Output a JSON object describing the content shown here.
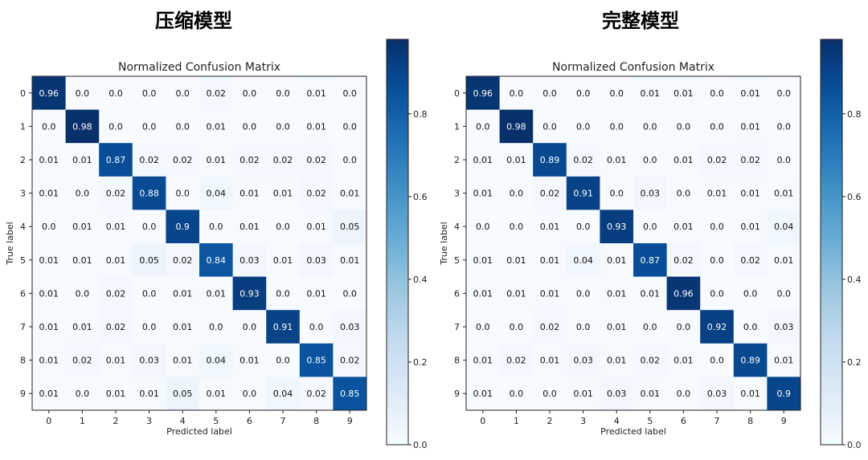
{
  "chart_data": [
    {
      "type": "heatmap",
      "panel_title": "压缩模型",
      "title": "Normalized Confusion Matrix",
      "xlabel": "Predicted label",
      "ylabel": "True label",
      "x_tick_labels": [
        "0",
        "1",
        "2",
        "3",
        "4",
        "5",
        "6",
        "7",
        "8",
        "9"
      ],
      "y_tick_labels": [
        "0",
        "1",
        "2",
        "3",
        "4",
        "5",
        "6",
        "7",
        "8",
        "9"
      ],
      "colormap": "Blues",
      "color_range": [
        0,
        0.98
      ],
      "colorbar_ticks": [
        "0.0",
        "0.2",
        "0.4",
        "0.6",
        "0.8"
      ],
      "colorbar_values": [
        0,
        0.2,
        0.4,
        0.6,
        0.8
      ],
      "values": [
        [
          "0.96",
          "0.0",
          "0.0",
          "0.0",
          "0.0",
          "0.02",
          "0.0",
          "0.0",
          "0.01",
          "0.0"
        ],
        [
          "0.0",
          "0.98",
          "0.0",
          "0.0",
          "0.0",
          "0.01",
          "0.0",
          "0.0",
          "0.01",
          "0.0"
        ],
        [
          "0.01",
          "0.01",
          "0.87",
          "0.02",
          "0.02",
          "0.01",
          "0.02",
          "0.02",
          "0.02",
          "0.0"
        ],
        [
          "0.01",
          "0.0",
          "0.02",
          "0.88",
          "0.0",
          "0.04",
          "0.01",
          "0.01",
          "0.02",
          "0.01"
        ],
        [
          "0.0",
          "0.01",
          "0.01",
          "0.0",
          "0.9",
          "0.0",
          "0.01",
          "0.0",
          "0.01",
          "0.05"
        ],
        [
          "0.01",
          "0.01",
          "0.01",
          "0.05",
          "0.02",
          "0.84",
          "0.03",
          "0.01",
          "0.03",
          "0.01"
        ],
        [
          "0.01",
          "0.0",
          "0.02",
          "0.0",
          "0.01",
          "0.01",
          "0.93",
          "0.0",
          "0.01",
          "0.0"
        ],
        [
          "0.01",
          "0.01",
          "0.02",
          "0.0",
          "0.01",
          "0.0",
          "0.0",
          "0.91",
          "0.0",
          "0.03"
        ],
        [
          "0.01",
          "0.02",
          "0.01",
          "0.03",
          "0.01",
          "0.04",
          "0.01",
          "0.0",
          "0.85",
          "0.02"
        ],
        [
          "0.01",
          "0.0",
          "0.01",
          "0.01",
          "0.05",
          "0.01",
          "0.0",
          "0.04",
          "0.02",
          "0.85"
        ]
      ]
    },
    {
      "type": "heatmap",
      "panel_title": "完整模型",
      "title": "Normalized Confusion Matrix",
      "xlabel": "Predicted label",
      "ylabel": "True label",
      "x_tick_labels": [
        "0",
        "1",
        "2",
        "3",
        "4",
        "5",
        "6",
        "7",
        "8",
        "9"
      ],
      "y_tick_labels": [
        "0",
        "1",
        "2",
        "3",
        "4",
        "5",
        "6",
        "7",
        "8",
        "9"
      ],
      "colormap": "Blues",
      "color_range": [
        0,
        0.98
      ],
      "colorbar_ticks": [
        "0.0",
        "0.2",
        "0.4",
        "0.6",
        "0.8"
      ],
      "colorbar_values": [
        0,
        0.2,
        0.4,
        0.6,
        0.8
      ],
      "values": [
        [
          "0.96",
          "0.0",
          "0.0",
          "0.0",
          "0.0",
          "0.01",
          "0.01",
          "0.0",
          "0.01",
          "0.0"
        ],
        [
          "0.0",
          "0.98",
          "0.0",
          "0.0",
          "0.0",
          "0.0",
          "0.0",
          "0.0",
          "0.01",
          "0.0"
        ],
        [
          "0.01",
          "0.01",
          "0.89",
          "0.02",
          "0.01",
          "0.0",
          "0.01",
          "0.02",
          "0.02",
          "0.0"
        ],
        [
          "0.01",
          "0.0",
          "0.02",
          "0.91",
          "0.0",
          "0.03",
          "0.0",
          "0.01",
          "0.01",
          "0.01"
        ],
        [
          "0.0",
          "0.0",
          "0.01",
          "0.0",
          "0.93",
          "0.0",
          "0.01",
          "0.0",
          "0.01",
          "0.04"
        ],
        [
          "0.01",
          "0.01",
          "0.01",
          "0.04",
          "0.01",
          "0.87",
          "0.02",
          "0.0",
          "0.02",
          "0.01"
        ],
        [
          "0.01",
          "0.01",
          "0.01",
          "0.0",
          "0.01",
          "0.01",
          "0.96",
          "0.0",
          "0.0",
          "0.0"
        ],
        [
          "0.0",
          "0.0",
          "0.02",
          "0.0",
          "0.01",
          "0.0",
          "0.0",
          "0.92",
          "0.0",
          "0.03"
        ],
        [
          "0.01",
          "0.02",
          "0.01",
          "0.03",
          "0.01",
          "0.02",
          "0.01",
          "0.0",
          "0.89",
          "0.01"
        ],
        [
          "0.01",
          "0.0",
          "0.0",
          "0.01",
          "0.03",
          "0.01",
          "0.0",
          "0.03",
          "0.01",
          "0.9"
        ]
      ]
    }
  ]
}
